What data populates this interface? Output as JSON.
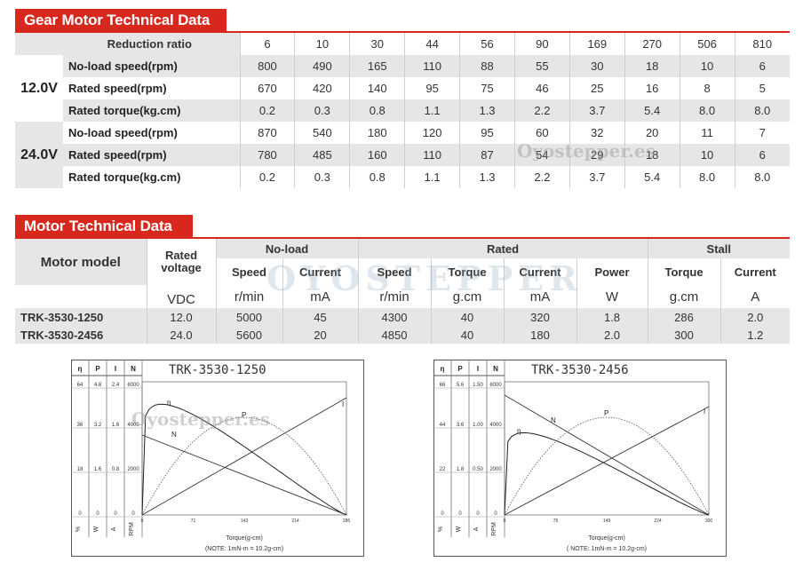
{
  "gear": {
    "title": "Gear Motor Technical Data",
    "ratio_label": "Reduction ratio",
    "ratios": [
      "6",
      "10",
      "30",
      "44",
      "56",
      "90",
      "169",
      "270",
      "506",
      "810"
    ],
    "groups": [
      {
        "voltage": "12.0V",
        "rows": [
          {
            "label": "No-load speed(rpm)",
            "values": [
              "800",
              "490",
              "165",
              "110",
              "88",
              "55",
              "30",
              "18",
              "10",
              "6"
            ]
          },
          {
            "label": "Rated speed(rpm)",
            "values": [
              "670",
              "420",
              "140",
              "95",
              "75",
              "46",
              "25",
              "16",
              "8",
              "5"
            ]
          },
          {
            "label": "Rated torque(kg.cm)",
            "values": [
              "0.2",
              "0.3",
              "0.8",
              "1.1",
              "1.3",
              "2.2",
              "3.7",
              "5.4",
              "8.0",
              "8.0"
            ]
          }
        ]
      },
      {
        "voltage": "24.0V",
        "rows": [
          {
            "label": "No-load speed(rpm)",
            "values": [
              "870",
              "540",
              "180",
              "120",
              "95",
              "60",
              "32",
              "20",
              "11",
              "7"
            ]
          },
          {
            "label": "Rated speed(rpm)",
            "values": [
              "780",
              "485",
              "160",
              "110",
              "87",
              "54",
              "29",
              "18",
              "10",
              "6"
            ]
          },
          {
            "label": "Rated torque(kg.cm)",
            "values": [
              "0.2",
              "0.3",
              "0.8",
              "1.1",
              "1.3",
              "2.2",
              "3.7",
              "5.4",
              "8.0",
              "8.0"
            ]
          }
        ]
      }
    ]
  },
  "motor": {
    "title": "Motor Technical Data",
    "headers": {
      "model": "Motor model",
      "rated_voltage": "Rated voltage",
      "noload": "No-load",
      "rated": "Rated",
      "stall": "Stall",
      "speed": "Speed",
      "current": "Current",
      "torque": "Torque",
      "power": "Power"
    },
    "units": [
      "VDC",
      "r/min",
      "mA",
      "r/min",
      "g.cm",
      "mA",
      "W",
      "g.cm",
      "A"
    ],
    "rows": [
      {
        "model": "TRK-3530-1250",
        "values": [
          "12.0",
          "5000",
          "45",
          "4300",
          "40",
          "320",
          "1.8",
          "286",
          "2.0"
        ]
      },
      {
        "model": "TRK-3530-2456",
        "values": [
          "24.0",
          "5600",
          "20",
          "4850",
          "40",
          "180",
          "2.0",
          "300",
          "1.2"
        ]
      }
    ]
  },
  "watermarks": {
    "oyostepper_es": "Oyostepper.es",
    "oyostepper_logo": "OYOSTEPPER"
  },
  "charts": [
    {
      "title": "TRK-3530-1250",
      "col_heads": [
        "η",
        "P",
        "I",
        "N"
      ],
      "axis_units": [
        "%",
        "W",
        "A",
        "RPM"
      ],
      "scale_rows": [
        [
          "64",
          "4.8",
          "2.4",
          "6000"
        ],
        [
          "36",
          "3.2",
          "1.6",
          "4000"
        ],
        [
          "18",
          "1.6",
          "0.8",
          "2000"
        ],
        [
          "0",
          "0",
          "0",
          "0"
        ]
      ],
      "x_ticks": [
        "0",
        "71",
        "143",
        "214",
        "286"
      ],
      "xlabel": "Torque(g-cm)",
      "note": "(NOTE: 1mN-m = 10.2g-cm)",
      "curve_labels": {
        "eff": "η",
        "power": "P",
        "current": "I",
        "speed": "N"
      }
    },
    {
      "title": "TRK-3530-2456",
      "col_heads": [
        "η",
        "P",
        "I",
        "N"
      ],
      "axis_units": [
        "%",
        "W",
        "A",
        "RPM"
      ],
      "scale_rows": [
        [
          "66",
          "5.6",
          "1.50",
          "6000"
        ],
        [
          "44",
          "3.6",
          "1.00",
          "4000"
        ],
        [
          "22",
          "1.8",
          "0.50",
          "2000"
        ],
        [
          "0",
          "0",
          "0",
          "0"
        ]
      ],
      "x_ticks": [
        "0",
        "75",
        "149",
        "224",
        "300"
      ],
      "xlabel": "Torque(g-cm)",
      "note": "( NOTE: 1mN-m = 10.2g-cm)",
      "curve_labels": {
        "eff": "η",
        "power": "P",
        "current": "I",
        "speed": "N"
      }
    }
  ]
}
